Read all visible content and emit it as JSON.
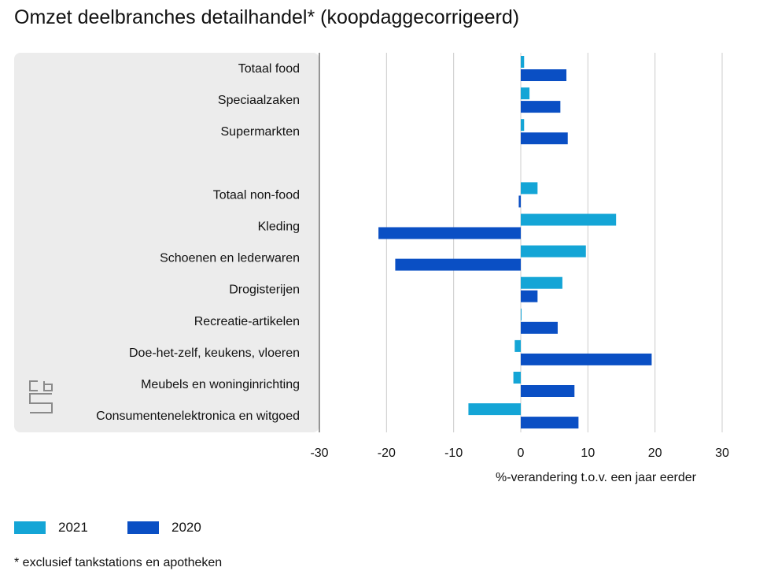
{
  "title": "Omzet deelbranches detailhandel* (koopdaggecorrigeerd)",
  "footnote": "* exclusief tankstations en apotheken",
  "logo_text": "cbs",
  "colors": {
    "series_2021": "#14a5d6",
    "series_2020": "#0a4fc4",
    "panel": "#ececec",
    "grid": "#cccccc",
    "axis": "#333333"
  },
  "chart_data": {
    "type": "bar",
    "orientation": "horizontal",
    "title": "Omzet deelbranches detailhandel* (koopdaggecorrigeerd)",
    "xlabel": "%-verandering t.o.v. een jaar eerder",
    "ylabel": "",
    "xlim": [
      -30,
      30
    ],
    "xticks": [
      "-30",
      "-20",
      "-10",
      "0",
      "10",
      "20",
      "30"
    ],
    "grid": true,
    "legend_position": "bottom-left",
    "categories": [
      "Totaal food",
      "Speciaalzaken",
      "Supermarkten",
      "",
      "Totaal non-food",
      "Kleding",
      "Schoenen en lederwaren",
      "Drogisterijen",
      "Recreatie-artikelen",
      "Doe-het-zelf, keukens, vloeren",
      "Meubels en woninginrichting",
      "Consumentenelektronica en witgoed"
    ],
    "series": [
      {
        "name": "2021",
        "color": "#14a5d6",
        "values": [
          0.5,
          1.3,
          0.5,
          null,
          2.5,
          14.2,
          9.7,
          6.2,
          0.1,
          -0.9,
          -1.1,
          -7.8
        ]
      },
      {
        "name": "2020",
        "color": "#0a4fc4",
        "values": [
          6.8,
          5.9,
          7.0,
          null,
          -0.3,
          -21.2,
          -18.7,
          2.5,
          5.5,
          19.5,
          8.0,
          8.6
        ]
      }
    ]
  }
}
